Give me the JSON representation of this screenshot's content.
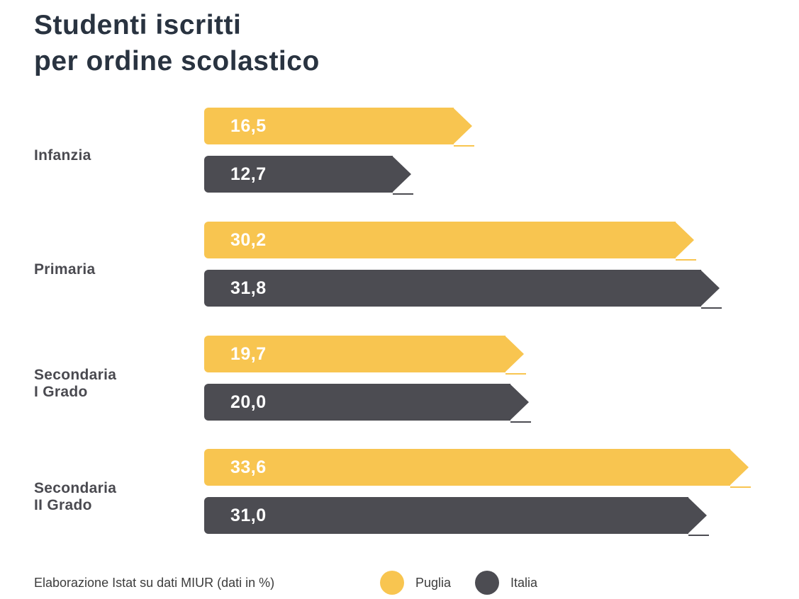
{
  "title": {
    "line1": "Studenti iscritti",
    "line2": "per ordine scolastico"
  },
  "source_note": "Elaborazione Istat su dati MIUR (dati in %)",
  "colors": {
    "puglia": "#F8C550",
    "italia": "#4C4C52",
    "title_text": "#293340",
    "category_text": "#4A4A50",
    "value_text": "#FFFFFF",
    "footer_text": "#3C3C3C",
    "background": "#FFFFFF"
  },
  "legend": [
    {
      "label": "Puglia",
      "color": "#F8C550"
    },
    {
      "label": "Italia",
      "color": "#4C4C52"
    }
  ],
  "chart_data": {
    "type": "bar",
    "orientation": "horizontal",
    "title": "Studenti iscritti per ordine scolastico",
    "unit": "%",
    "xlim": [
      0,
      35
    ],
    "grid": false,
    "legend_position": "bottom",
    "categories": [
      "Infanzia",
      "Primaria",
      "Secondaria I Grado",
      "Secondaria II Grado"
    ],
    "categories_display": [
      [
        "Infanzia"
      ],
      [
        "Primaria"
      ],
      [
        "Secondaria",
        "I Grado"
      ],
      [
        "Secondaria",
        "II Grado"
      ]
    ],
    "series": [
      {
        "name": "Puglia",
        "color": "#F8C550",
        "values": [
          16.5,
          30.2,
          19.7,
          33.6
        ],
        "value_labels": [
          "16,5",
          "30,2",
          "19,7",
          "33,6"
        ]
      },
      {
        "name": "Italia",
        "color": "#4C4C52",
        "values": [
          12.7,
          31.8,
          20.0,
          31.0
        ],
        "value_labels": [
          "12,7",
          "31,8",
          "20,0",
          "31,0"
        ]
      }
    ]
  }
}
